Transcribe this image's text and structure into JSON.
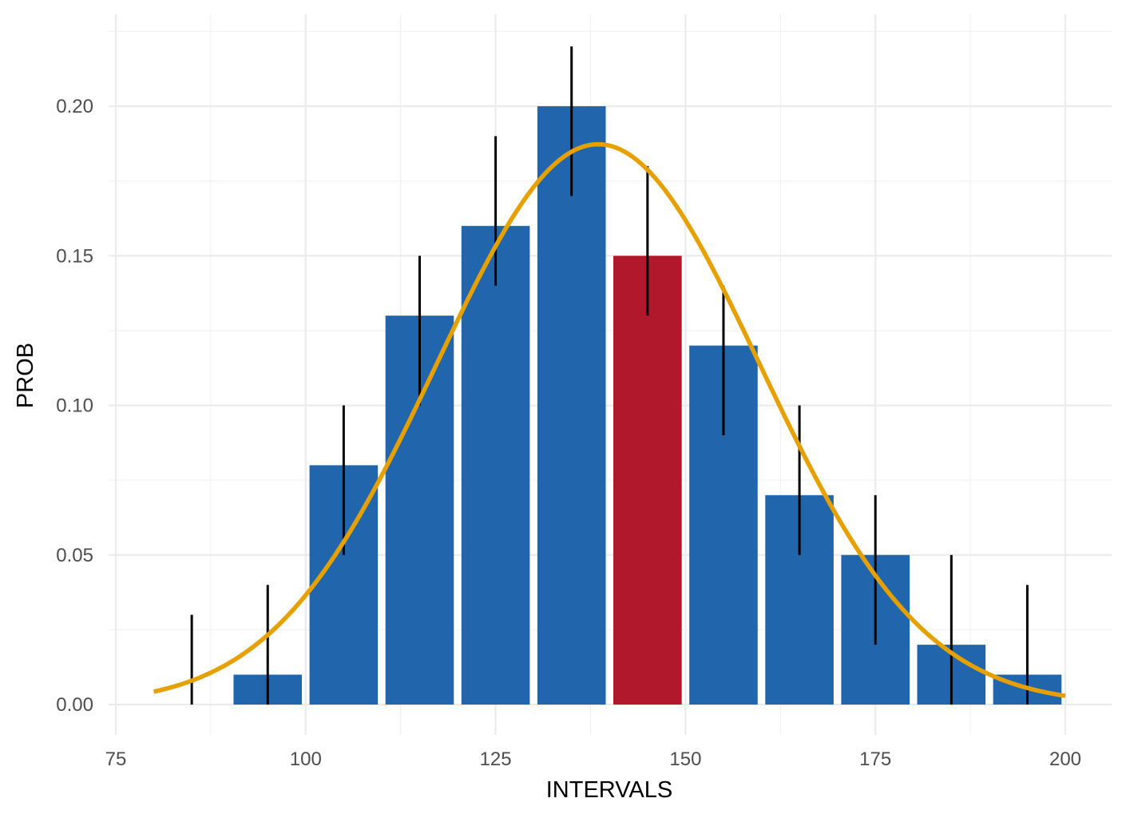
{
  "chart_data": {
    "type": "bar",
    "xlabel": "INTERVALS",
    "ylabel": "PROB",
    "xlim": [
      75,
      200
    ],
    "ylim": [
      0,
      0.22
    ],
    "x_ticks": [
      {
        "value": 75,
        "label": "75"
      },
      {
        "value": 100,
        "label": "100"
      },
      {
        "value": 125,
        "label": "125"
      },
      {
        "value": 150,
        "label": "150"
      },
      {
        "value": 175,
        "label": "175"
      },
      {
        "value": 200,
        "label": "200"
      }
    ],
    "y_ticks": [
      {
        "value": 0,
        "label": "0.00"
      },
      {
        "value": 0.05,
        "label": "0.05"
      },
      {
        "value": 0.1,
        "label": "0.10"
      },
      {
        "value": 0.15,
        "label": "0.15"
      },
      {
        "value": 0.2,
        "label": "0.20"
      }
    ],
    "bar_width": 9,
    "bars": [
      {
        "x": 85,
        "value": 0.0,
        "err_low": 0.0,
        "err_high": 0.03,
        "color": "#2166ac"
      },
      {
        "x": 95,
        "value": 0.01,
        "err_low": 0.0,
        "err_high": 0.04,
        "color": "#2166ac"
      },
      {
        "x": 105,
        "value": 0.08,
        "err_low": 0.05,
        "err_high": 0.1,
        "color": "#2166ac"
      },
      {
        "x": 115,
        "value": 0.13,
        "err_low": 0.1,
        "err_high": 0.15,
        "color": "#2166ac"
      },
      {
        "x": 125,
        "value": 0.16,
        "err_low": 0.14,
        "err_high": 0.19,
        "color": "#2166ac"
      },
      {
        "x": 135,
        "value": 0.2,
        "err_low": 0.17,
        "err_high": 0.22,
        "color": "#2166ac"
      },
      {
        "x": 145,
        "value": 0.15,
        "err_low": 0.13,
        "err_high": 0.18,
        "color": "#b2182b"
      },
      {
        "x": 155,
        "value": 0.12,
        "err_low": 0.09,
        "err_high": 0.14,
        "color": "#2166ac"
      },
      {
        "x": 165,
        "value": 0.07,
        "err_low": 0.05,
        "err_high": 0.1,
        "color": "#2166ac"
      },
      {
        "x": 175,
        "value": 0.05,
        "err_low": 0.02,
        "err_high": 0.07,
        "color": "#2166ac"
      },
      {
        "x": 185,
        "value": 0.02,
        "err_low": 0.0,
        "err_high": 0.05,
        "color": "#2166ac"
      },
      {
        "x": 195,
        "value": 0.01,
        "err_low": 0.0,
        "err_high": 0.04,
        "color": "#2166ac"
      }
    ],
    "curve": {
      "type": "normal-density",
      "mean": 138.5,
      "sd": 21.3,
      "x_range": [
        80,
        200
      ],
      "color": "#e6a000"
    },
    "grid": true,
    "legend": "none"
  }
}
